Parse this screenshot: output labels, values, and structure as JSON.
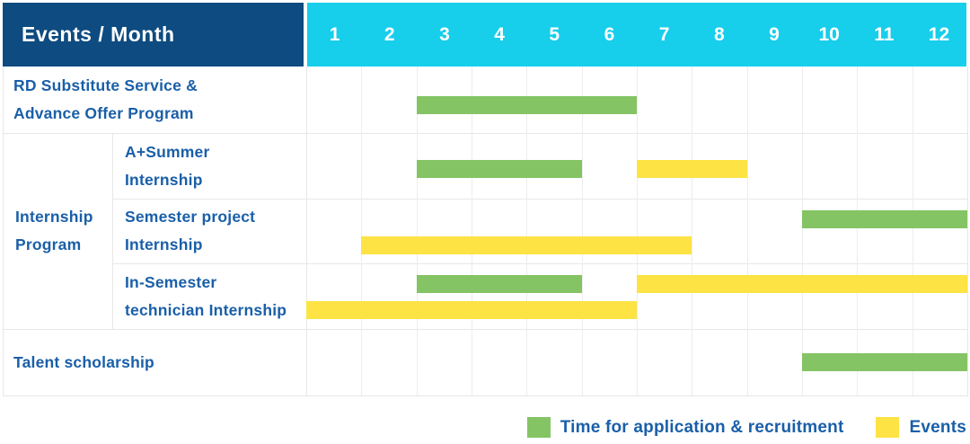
{
  "table": {
    "corner_label": "Events / Month",
    "months": [
      "1",
      "2",
      "3",
      "4",
      "5",
      "6",
      "7",
      "8",
      "9",
      "10",
      "11",
      "12"
    ]
  },
  "labels": {
    "rd": [
      "RD Substitute Service &",
      "Advance Offer Program"
    ],
    "group": [
      "Internship",
      "Program"
    ],
    "a_summer": [
      "A+Summer",
      "Internship"
    ],
    "semester": [
      "Semester project",
      "Internship"
    ],
    "in_semester": [
      "In-Semester",
      "technician Internship"
    ],
    "talent": "Talent scholarship"
  },
  "legend": {
    "items": [
      {
        "label": "Time for application & recruitment",
        "color": "#84c464",
        "meaning": "application"
      },
      {
        "label": "Events",
        "color": "#fde344",
        "meaning": "event"
      }
    ]
  },
  "colors": {
    "header_bg": "#0e4b80",
    "months_header_bg": "#17ceeb",
    "green": "#84c464",
    "yellow": "#fde344",
    "label_text": "#1a5fa8",
    "grid_line": "#e7e7e7"
  },
  "chart_data": {
    "type": "gantt",
    "title": "Events / Month",
    "x_categories": [
      1,
      2,
      3,
      4,
      5,
      6,
      7,
      8,
      9,
      10,
      11,
      12
    ],
    "x_range": [
      1,
      12
    ],
    "legend_entries": [
      "Time for application & recruitment",
      "Events"
    ],
    "legend_position": "bottom-right",
    "grid": true,
    "rows": [
      {
        "group": null,
        "label": "RD Substitute Service & Advance Offer Program",
        "lanes": 1,
        "bars": [
          {
            "type": "application",
            "color": "green",
            "start_month": 3,
            "end_month": 6
          }
        ]
      },
      {
        "group": "Internship Program",
        "label": "A+Summer Internship",
        "lanes": 1,
        "bars": [
          {
            "type": "application",
            "color": "green",
            "start_month": 3,
            "end_month": 5
          },
          {
            "type": "event",
            "color": "yellow",
            "start_month": 7,
            "end_month": 8
          }
        ]
      },
      {
        "group": "Internship Program",
        "label": "Semester project Internship",
        "lanes": 2,
        "bars": [
          {
            "type": "application",
            "color": "green",
            "start_month": 10,
            "end_month": 12,
            "lane": 0
          },
          {
            "type": "event",
            "color": "yellow",
            "start_month": 2,
            "end_month": 7,
            "lane": 1
          }
        ]
      },
      {
        "group": "Internship Program",
        "label": "In-Semester technician Internship",
        "lanes": 2,
        "bars": [
          {
            "type": "application",
            "color": "green",
            "start_month": 3,
            "end_month": 5,
            "lane": 0
          },
          {
            "type": "event",
            "color": "yellow",
            "start_month": 7,
            "end_month": 12,
            "lane": 0
          },
          {
            "type": "event",
            "color": "yellow",
            "start_month": 1,
            "end_month": 6,
            "lane": 1
          }
        ]
      },
      {
        "group": null,
        "label": "Talent scholarship",
        "lanes": 1,
        "bars": [
          {
            "type": "application",
            "color": "green",
            "start_month": 10,
            "end_month": 12
          }
        ]
      }
    ]
  }
}
